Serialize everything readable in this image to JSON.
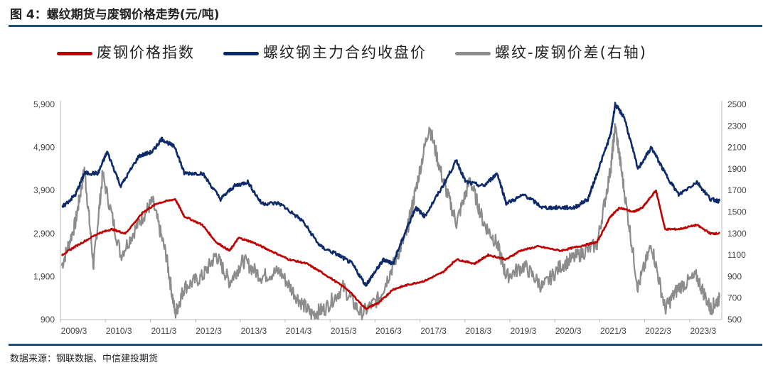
{
  "title": "图 4：螺纹期货与废钢价格走势(元/吨)",
  "source": "数据来源：钢联数据、中信建投期货",
  "chart_data": {
    "type": "line",
    "title": "图 4：螺纹期货与废钢价格走势(元/吨)",
    "legend_position": "top",
    "x_ticks": [
      "2009/3",
      "2010/3",
      "2011/3",
      "2012/3",
      "2013/3",
      "2014/3",
      "2015/3",
      "2016/3",
      "2017/3",
      "2018/3",
      "2019/3",
      "2020/3",
      "2021/3",
      "2022/3",
      "2023/3"
    ],
    "xlim": [
      2009.17,
      2023.75
    ],
    "y_left": {
      "ticks": [
        900,
        1900,
        2900,
        3900,
        4900,
        5900
      ],
      "tick_labels": [
        "900",
        "1,900",
        "2,900",
        "3,900",
        "4,900",
        "5,900"
      ],
      "ylim": [
        900,
        5900
      ]
    },
    "y_right": {
      "ticks": [
        500,
        700,
        900,
        1100,
        1300,
        1500,
        1700,
        1900,
        2100,
        2300,
        2500
      ],
      "ylim": [
        500,
        2500
      ]
    },
    "series": [
      {
        "name": "废钢价格指数",
        "color": "#c00000",
        "axis": "left",
        "points": [
          [
            2009.2,
            2400
          ],
          [
            2009.5,
            2600
          ],
          [
            2010.0,
            2900
          ],
          [
            2010.3,
            3000
          ],
          [
            2010.6,
            2900
          ],
          [
            2011.0,
            3400
          ],
          [
            2011.3,
            3600
          ],
          [
            2011.7,
            3700
          ],
          [
            2011.9,
            3300
          ],
          [
            2012.3,
            3100
          ],
          [
            2012.6,
            2700
          ],
          [
            2012.9,
            2500
          ],
          [
            2013.1,
            2800
          ],
          [
            2013.4,
            2700
          ],
          [
            2013.8,
            2500
          ],
          [
            2014.2,
            2300
          ],
          [
            2014.6,
            2200
          ],
          [
            2015.0,
            1950
          ],
          [
            2015.5,
            1600
          ],
          [
            2015.9,
            1150
          ],
          [
            2016.2,
            1300
          ],
          [
            2016.5,
            1600
          ],
          [
            2016.8,
            1700
          ],
          [
            2017.2,
            1800
          ],
          [
            2017.6,
            2000
          ],
          [
            2017.9,
            2300
          ],
          [
            2018.3,
            2200
          ],
          [
            2018.6,
            2400
          ],
          [
            2019.0,
            2300
          ],
          [
            2019.3,
            2500
          ],
          [
            2019.7,
            2600
          ],
          [
            2020.2,
            2500
          ],
          [
            2020.6,
            2600
          ],
          [
            2021.0,
            2700
          ],
          [
            2021.3,
            3300
          ],
          [
            2021.5,
            3500
          ],
          [
            2021.8,
            3400
          ],
          [
            2022.0,
            3500
          ],
          [
            2022.3,
            3900
          ],
          [
            2022.5,
            3000
          ],
          [
            2022.8,
            3000
          ],
          [
            2023.2,
            3100
          ],
          [
            2023.5,
            2900
          ],
          [
            2023.7,
            2900
          ]
        ]
      },
      {
        "name": "螺纹钢主力合约收盘价",
        "color": "#0d2b6b",
        "axis": "left",
        "points": [
          [
            2009.2,
            3500
          ],
          [
            2009.5,
            3800
          ],
          [
            2009.7,
            4300
          ],
          [
            2010.0,
            4300
          ],
          [
            2010.2,
            4800
          ],
          [
            2010.5,
            4000
          ],
          [
            2010.9,
            4700
          ],
          [
            2011.2,
            4800
          ],
          [
            2011.4,
            5100
          ],
          [
            2011.7,
            4900
          ],
          [
            2011.9,
            4300
          ],
          [
            2012.3,
            4300
          ],
          [
            2012.7,
            3700
          ],
          [
            2013.0,
            4000
          ],
          [
            2013.3,
            4100
          ],
          [
            2013.6,
            3600
          ],
          [
            2014.0,
            3600
          ],
          [
            2014.5,
            3200
          ],
          [
            2014.9,
            2600
          ],
          [
            2015.3,
            2400
          ],
          [
            2015.6,
            2200
          ],
          [
            2015.9,
            1700
          ],
          [
            2016.1,
            2000
          ],
          [
            2016.3,
            2300
          ],
          [
            2016.5,
            2200
          ],
          [
            2016.8,
            3000
          ],
          [
            2017.0,
            3500
          ],
          [
            2017.2,
            3300
          ],
          [
            2017.6,
            4000
          ],
          [
            2017.9,
            4600
          ],
          [
            2018.1,
            4100
          ],
          [
            2018.5,
            4000
          ],
          [
            2018.8,
            4300
          ],
          [
            2019.0,
            3600
          ],
          [
            2019.4,
            3800
          ],
          [
            2019.8,
            3500
          ],
          [
            2020.2,
            3500
          ],
          [
            2020.5,
            3500
          ],
          [
            2020.8,
            3700
          ],
          [
            2021.0,
            4300
          ],
          [
            2021.3,
            5200
          ],
          [
            2021.4,
            5900
          ],
          [
            2021.6,
            5600
          ],
          [
            2021.9,
            4400
          ],
          [
            2022.2,
            4900
          ],
          [
            2022.5,
            4300
          ],
          [
            2022.8,
            3800
          ],
          [
            2023.2,
            4100
          ],
          [
            2023.5,
            3700
          ],
          [
            2023.7,
            3650
          ]
        ]
      },
      {
        "name": "螺纹-废钢价差(右轴)",
        "color": "#8c8c8c",
        "axis": "right",
        "points": [
          [
            2009.2,
            1000
          ],
          [
            2009.5,
            1400
          ],
          [
            2009.7,
            1900
          ],
          [
            2009.9,
            1000
          ],
          [
            2010.1,
            1850
          ],
          [
            2010.5,
            1100
          ],
          [
            2010.9,
            1400
          ],
          [
            2011.2,
            1600
          ],
          [
            2011.5,
            1100
          ],
          [
            2011.7,
            550
          ],
          [
            2011.9,
            800
          ],
          [
            2012.3,
            900
          ],
          [
            2012.6,
            1100
          ],
          [
            2012.9,
            850
          ],
          [
            2013.2,
            1050
          ],
          [
            2013.6,
            900
          ],
          [
            2014.0,
            950
          ],
          [
            2014.4,
            700
          ],
          [
            2014.7,
            550
          ],
          [
            2015.0,
            600
          ],
          [
            2015.4,
            800
          ],
          [
            2015.8,
            550
          ],
          [
            2016.2,
            700
          ],
          [
            2016.5,
            1000
          ],
          [
            2016.8,
            1300
          ],
          [
            2017.0,
            1700
          ],
          [
            2017.3,
            2300
          ],
          [
            2017.6,
            1800
          ],
          [
            2017.9,
            1400
          ],
          [
            2018.2,
            1800
          ],
          [
            2018.5,
            1400
          ],
          [
            2018.8,
            1200
          ],
          [
            2019.0,
            900
          ],
          [
            2019.4,
            1000
          ],
          [
            2019.8,
            800
          ],
          [
            2020.2,
            1000
          ],
          [
            2020.6,
            1100
          ],
          [
            2021.0,
            1200
          ],
          [
            2021.3,
            1900
          ],
          [
            2021.4,
            2300
          ],
          [
            2021.6,
            1700
          ],
          [
            2021.9,
            800
          ],
          [
            2022.2,
            1200
          ],
          [
            2022.5,
            600
          ],
          [
            2022.8,
            800
          ],
          [
            2023.2,
            900
          ],
          [
            2023.5,
            600
          ],
          [
            2023.7,
            700
          ]
        ]
      }
    ]
  }
}
